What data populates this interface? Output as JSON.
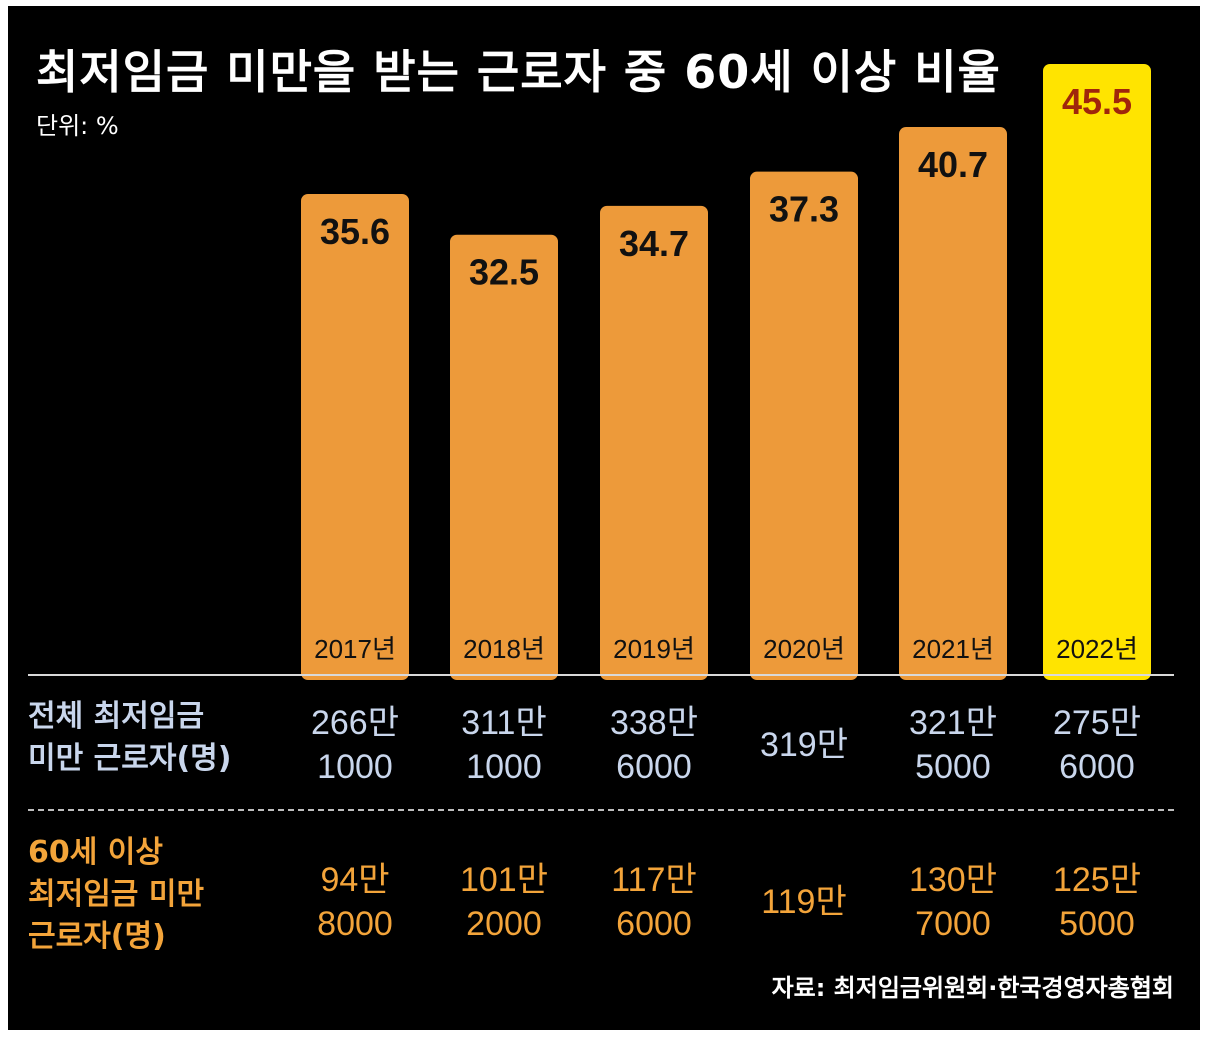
{
  "title": "최저임금 미만을 받는 근로자 중 60세 이상 비율",
  "unit": "단위: %",
  "colors": {
    "background": "#000000",
    "bar": "#ed9a3a",
    "highlight_bar": "#ffe400",
    "value_text": "#111111",
    "highlight_value_text": "#a0260b",
    "row1_text": "#c9d6ec",
    "row2_text": "#f3a43a"
  },
  "chart_data": {
    "type": "bar",
    "categories": [
      "2017년",
      "2018년",
      "2019년",
      "2020년",
      "2021년",
      "2022년"
    ],
    "values": [
      35.6,
      32.5,
      34.7,
      37.3,
      40.7,
      45.5
    ],
    "value_labels": [
      "35.6",
      "32.5",
      "34.7",
      "37.3",
      "40.7",
      "45.5"
    ],
    "highlight_index": 5,
    "title": "최저임금 미만을 받는 근로자 중 60세 이상 비율",
    "ylabel": "",
    "ylim": [
      0,
      50
    ],
    "grid": false,
    "legend": "none"
  },
  "table": {
    "row1": {
      "label": [
        "전체 최저임금",
        "미만 근로자(명)"
      ],
      "cells": [
        [
          "266만",
          "1000"
        ],
        [
          "311만",
          "1000"
        ],
        [
          "338만",
          "6000"
        ],
        [
          "319만"
        ],
        [
          "321만",
          "5000"
        ],
        [
          "275만",
          "6000"
        ]
      ]
    },
    "row2": {
      "label": [
        "60세 이상",
        "최저임금 미만",
        "근로자(명)"
      ],
      "cells": [
        [
          "94만",
          "8000"
        ],
        [
          "101만",
          "2000"
        ],
        [
          "117만",
          "6000"
        ],
        [
          "119만"
        ],
        [
          "130만",
          "7000"
        ],
        [
          "125만",
          "5000"
        ]
      ]
    }
  },
  "source": "자료: 최저임금위원회·한국경영자총협회"
}
